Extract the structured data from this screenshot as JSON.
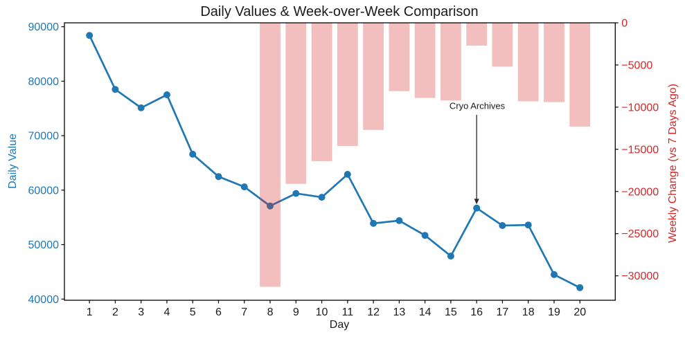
{
  "title": "Daily Values & Week-over-Week Comparison",
  "axes": {
    "x_label": "Day",
    "left_label": "Daily Value",
    "right_label": "Weekly Change (vs 7 Days Ago)"
  },
  "annotation": {
    "text": "Cryo Archives",
    "target_day": 16
  },
  "colors": {
    "line": "#1f77b4",
    "left_axis_text": "#1f77b4",
    "right_axis_text": "#d62728",
    "bar_base": "#d62728",
    "bar_alpha": 0.3,
    "spine": "#000000",
    "tick_text": "#1a1a1a",
    "arrow": "#2a2a2a"
  },
  "chart_data": {
    "type": "line+bar",
    "title": "Daily Values & Week-over-Week Comparison",
    "xlabel": "Day",
    "x": [
      1,
      2,
      3,
      4,
      5,
      6,
      7,
      8,
      9,
      10,
      11,
      12,
      13,
      14,
      15,
      16,
      17,
      18,
      19,
      20
    ],
    "series": [
      {
        "name": "Daily Value",
        "type": "line",
        "axis": "left",
        "x": [
          1,
          2,
          3,
          4,
          5,
          6,
          7,
          8,
          9,
          10,
          11,
          12,
          13,
          14,
          15,
          16,
          17,
          18,
          19,
          20
        ],
        "values": [
          88400,
          78500,
          75100,
          77500,
          66600,
          62500,
          60600,
          57100,
          59400,
          58700,
          62900,
          53900,
          54400,
          51700,
          47900,
          56700,
          53500,
          53600,
          44500,
          42100
        ]
      },
      {
        "name": "Weekly Change (vs 7 Days Ago)",
        "type": "bar",
        "axis": "right",
        "x": [
          8,
          9,
          10,
          11,
          12,
          13,
          14,
          15,
          16,
          17,
          18,
          19,
          20
        ],
        "values": [
          -31300,
          -19100,
          -16400,
          -14600,
          -12700,
          -8100,
          -8900,
          -9200,
          -2700,
          -5200,
          -9300,
          -9400,
          -12300
        ]
      }
    ],
    "left_axis": {
      "label": "Daily Value",
      "ticks": [
        90000,
        80000,
        70000,
        60000,
        50000,
        40000
      ],
      "range": [
        39785,
        90715
      ]
    },
    "right_axis": {
      "label": "Weekly Change (vs 7 Days Ago)",
      "ticks": [
        0,
        -5000,
        -10000,
        -15000,
        -20000,
        -25000,
        -30000
      ],
      "range": [
        -32900,
        0
      ]
    },
    "x_ticks": [
      1,
      2,
      3,
      4,
      5,
      6,
      7,
      8,
      9,
      10,
      11,
      12,
      13,
      14,
      15,
      16,
      17,
      18,
      19,
      20
    ],
    "grid": false,
    "legend_position": "none",
    "annotations": [
      {
        "text": "Cryo Archives",
        "x": 16,
        "y": 56700
      }
    ]
  }
}
